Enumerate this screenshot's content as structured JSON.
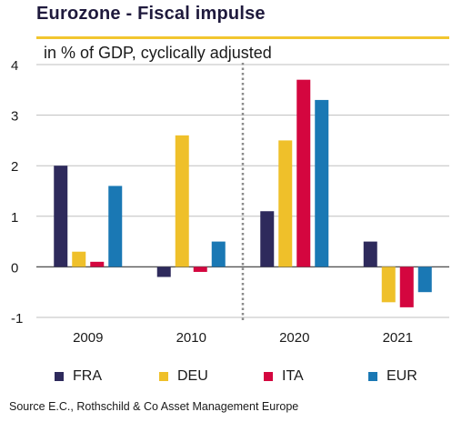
{
  "title": "Eurozone - Fiscal impulse",
  "subtitle": "in % of GDP, cyclically adjusted",
  "source": "Source E.C., Rothschild  & Co Asset Management Europe",
  "colors": {
    "title_rule": "#f2c62f",
    "FRA": "#2e2a5c",
    "DEU": "#efc02a",
    "ITA": "#d4063f",
    "EUR": "#1a78b4"
  },
  "chart_data": {
    "type": "bar",
    "categories": [
      "2009",
      "2010",
      "2020",
      "2021"
    ],
    "series": [
      {
        "name": "FRA",
        "values": [
          2.0,
          -0.2,
          1.1,
          0.5
        ]
      },
      {
        "name": "DEU",
        "values": [
          0.3,
          2.6,
          2.5,
          -0.7
        ]
      },
      {
        "name": "ITA",
        "values": [
          0.1,
          -0.1,
          3.7,
          -0.8
        ]
      },
      {
        "name": "EUR",
        "values": [
          1.6,
          0.5,
          3.3,
          -0.5
        ]
      }
    ],
    "y_ticks": [
      "4",
      "3",
      "2",
      "1",
      "0",
      "-1"
    ],
    "ylim": [
      -1,
      4
    ],
    "grid": true,
    "divider_between": [
      "2010",
      "2020"
    ],
    "legend_position": "bottom"
  }
}
